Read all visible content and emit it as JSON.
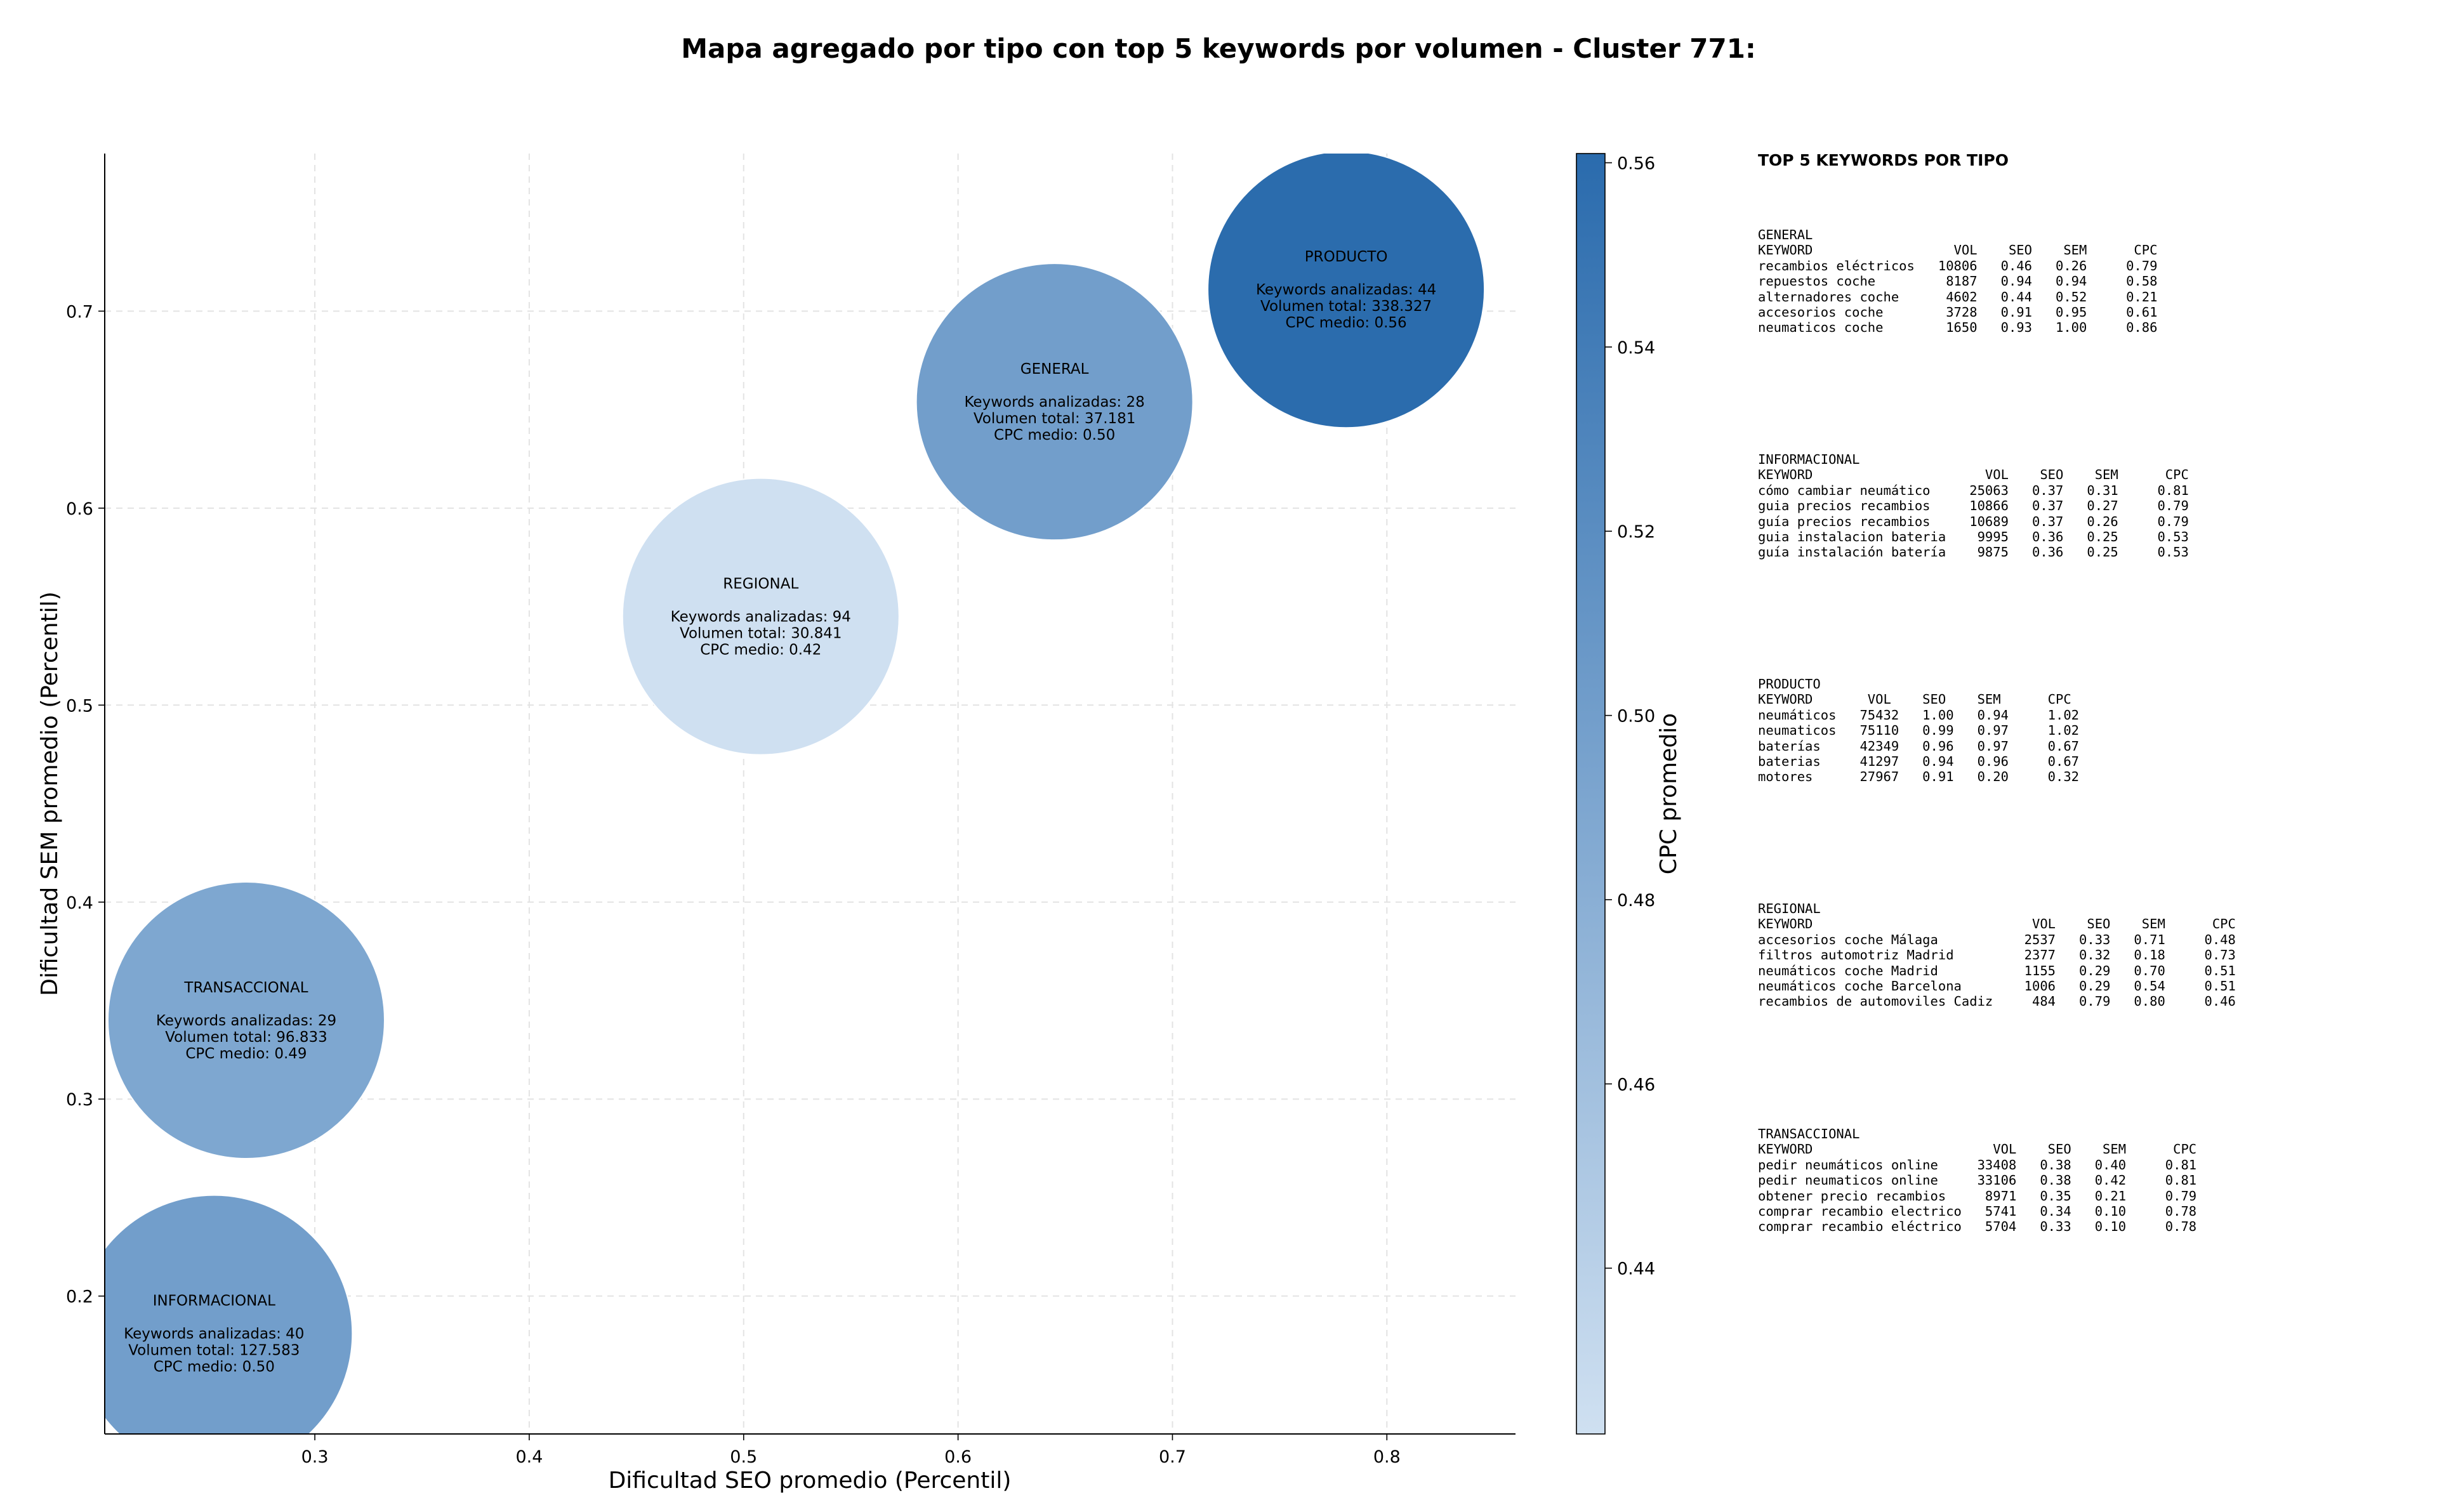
{
  "chart_data": {
    "type": "scatter",
    "title": "Mapa agregado por tipo con top 5 keywords por volumen - Cluster 771:",
    "xlabel": "Dificultad SEO promedio (Percentil)",
    "ylabel": "Dificultad SEM promedio (Percentil)",
    "xlim": [
      0.202,
      0.86
    ],
    "ylim": [
      0.13,
      0.78
    ],
    "xticks": [
      "0.3",
      "0.4",
      "0.5",
      "0.6",
      "0.7",
      "0.8"
    ],
    "yticks": [
      "0.2",
      "0.3",
      "0.4",
      "0.5",
      "0.6",
      "0.7"
    ],
    "grid": true,
    "colorbar": {
      "label": "CPC promedio",
      "range": [
        0.422,
        0.561
      ],
      "ticks": [
        "0.44",
        "0.46",
        "0.48",
        "0.50",
        "0.52",
        "0.54",
        "0.56"
      ],
      "color_low": "#cfe0f1",
      "color_high": "#2a6bad"
    },
    "points": [
      {
        "name": "INFORMACIONAL",
        "x": 0.253,
        "y": 0.181,
        "cpc": 0.5,
        "keywords": "40",
        "volumen": "127.583",
        "label_lines": [
          "INFORMACIONAL",
          "",
          "Keywords analizadas: 40",
          "Volumen total: 127.583",
          "CPC medio: 0.50"
        ]
      },
      {
        "name": "TRANSACCIONAL",
        "x": 0.268,
        "y": 0.34,
        "cpc": 0.49,
        "keywords": "29",
        "volumen": "96.833",
        "label_lines": [
          "TRANSACCIONAL",
          "",
          "Keywords analizadas: 29",
          "Volumen total: 96.833",
          "CPC medio: 0.49"
        ]
      },
      {
        "name": "REGIONAL",
        "x": 0.508,
        "y": 0.545,
        "cpc": 0.42,
        "keywords": "94",
        "volumen": "30.841",
        "label_lines": [
          "REGIONAL",
          "",
          "Keywords analizadas: 94",
          "Volumen total: 30.841",
          "CPC medio: 0.42"
        ]
      },
      {
        "name": "GENERAL",
        "x": 0.645,
        "y": 0.654,
        "cpc": 0.5,
        "keywords": "28",
        "volumen": "37.181",
        "label_lines": [
          "GENERAL",
          "",
          "Keywords analizadas: 28",
          "Volumen total: 37.181",
          "CPC medio: 0.50"
        ]
      },
      {
        "name": "PRODUCTO",
        "x": 0.781,
        "y": 0.711,
        "cpc": 0.56,
        "keywords": "44",
        "volumen": "338.327",
        "label_lines": [
          "PRODUCTO",
          "",
          "Keywords analizadas: 44",
          "Volumen total: 338.327",
          "CPC medio: 0.56"
        ]
      }
    ]
  },
  "sidebar": {
    "title": "TOP 5 KEYWORDS POR TIPO",
    "blocks": [
      {
        "lines": [
          "GENERAL",
          "KEYWORD                  VOL    SEO    SEM      CPC",
          "recambios eléctricos   10806   0.46   0.26     0.79",
          "repuestos coche         8187   0.94   0.94     0.58",
          "alternadores coche      4602   0.44   0.52     0.21",
          "accesorios coche        3728   0.91   0.95     0.61",
          "neumaticos coche        1650   0.93   1.00     0.86"
        ]
      },
      {
        "lines": [
          "INFORMACIONAL",
          "KEYWORD                      VOL    SEO    SEM      CPC",
          "cómo cambiar neumático     25063   0.37   0.31     0.81",
          "guia precios recambios     10866   0.37   0.27     0.79",
          "guía precios recambios     10689   0.37   0.26     0.79",
          "guia instalacion bateria    9995   0.36   0.25     0.53",
          "guía instalación batería    9875   0.36   0.25     0.53"
        ]
      },
      {
        "lines": [
          "PRODUCTO",
          "KEYWORD       VOL    SEO    SEM      CPC",
          "neumáticos   75432   1.00   0.94     1.02",
          "neumaticos   75110   0.99   0.97     1.02",
          "baterías     42349   0.96   0.97     0.67",
          "baterias     41297   0.94   0.96     0.67",
          "motores      27967   0.91   0.20     0.32"
        ]
      },
      {
        "lines": [
          "REGIONAL",
          "KEYWORD                            VOL    SEO    SEM      CPC",
          "accesorios coche Málaga           2537   0.33   0.71     0.48",
          "filtros automotriz Madrid         2377   0.32   0.18     0.73",
          "neumáticos coche Madrid           1155   0.29   0.70     0.51",
          "neumáticos coche Barcelona        1006   0.29   0.54     0.51",
          "recambios de automoviles Cadiz     484   0.79   0.80     0.46"
        ]
      },
      {
        "lines": [
          "TRANSACCIONAL",
          "KEYWORD                       VOL    SEO    SEM      CPC",
          "pedir neumáticos online     33408   0.38   0.40     0.81",
          "pedir neumaticos online     33106   0.38   0.42     0.81",
          "obtener precio recambios     8971   0.35   0.21     0.79",
          "comprar recambio electrico   5741   0.34   0.10     0.78",
          "comprar recambio eléctrico   5704   0.33   0.10     0.78"
        ]
      }
    ]
  }
}
